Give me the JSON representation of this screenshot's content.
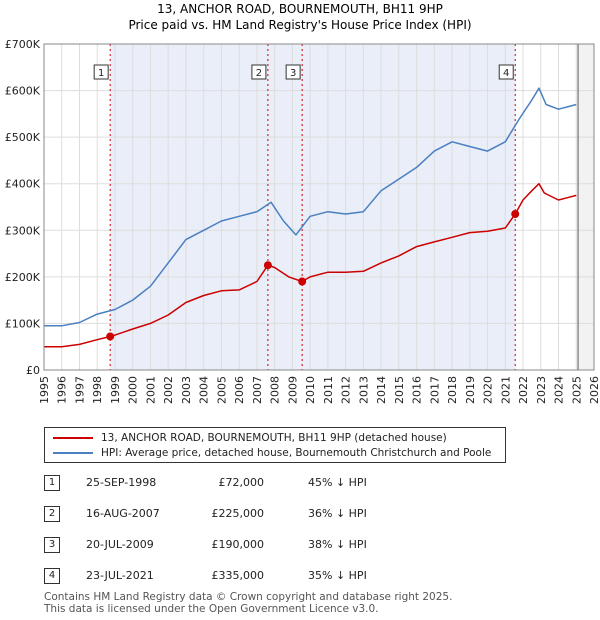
{
  "chart_data": {
    "type": "line",
    "title": "13, ANCHOR ROAD, BOURNEMOUTH, BH11 9HP",
    "subtitle": "Price paid vs. HM Land Registry's House Price Index (HPI)",
    "xlim": [
      1995,
      2026
    ],
    "ylim": [
      0,
      700000
    ],
    "y_ticks": [
      0,
      100000,
      200000,
      300000,
      400000,
      500000,
      600000,
      700000
    ],
    "y_tick_labels": [
      "£0",
      "£100K",
      "£200K",
      "£300K",
      "£400K",
      "£500K",
      "£600K",
      "£700K"
    ],
    "x_ticks": [
      1995,
      1996,
      1997,
      1998,
      1999,
      2000,
      2001,
      2002,
      2003,
      2004,
      2005,
      2006,
      2007,
      2008,
      2009,
      2010,
      2011,
      2012,
      2013,
      2014,
      2015,
      2016,
      2017,
      2018,
      2019,
      2020,
      2021,
      2022,
      2023,
      2024,
      2025,
      2026
    ],
    "shaded_range": [
      1998.73,
      2021.56
    ],
    "data_end_year": 2025.1,
    "series": [
      {
        "name": "13, ANCHOR ROAD, BOURNEMOUTH, BH11 9HP (detached house)",
        "color": "#cc0000",
        "x": [
          1995,
          1996,
          1997,
          1998,
          1998.73,
          1999,
          2000,
          2001,
          2002,
          2003,
          2004,
          2005,
          2006,
          2007,
          2007.62,
          2008,
          2008.8,
          2009.55,
          2010,
          2011,
          2012,
          2013,
          2014,
          2015,
          2016,
          2017,
          2018,
          2019,
          2020,
          2021,
          2021.56,
          2022,
          2022.5,
          2022.9,
          2023.2,
          2024,
          2024.5,
          2025
        ],
        "values": [
          50000,
          50000,
          55000,
          65000,
          72000,
          75000,
          88000,
          100000,
          118000,
          145000,
          160000,
          170000,
          172000,
          190000,
          225000,
          220000,
          200000,
          190000,
          200000,
          210000,
          210000,
          212000,
          230000,
          245000,
          265000,
          275000,
          285000,
          295000,
          298000,
          305000,
          335000,
          365000,
          385000,
          400000,
          380000,
          365000,
          370000,
          375000
        ]
      },
      {
        "name": "HPI: Average price, detached house, Bournemouth Christchurch and Poole",
        "color": "#4a7fc1",
        "x": [
          1995,
          1996,
          1997,
          1998,
          1999,
          2000,
          2001,
          2002,
          2003,
          2004,
          2005,
          2006,
          2007,
          2007.8,
          2008.5,
          2009.2,
          2010,
          2011,
          2012,
          2013,
          2014,
          2015,
          2016,
          2017,
          2018,
          2019,
          2020,
          2021,
          2021.8,
          2022.5,
          2022.9,
          2023.3,
          2024,
          2024.5,
          2025
        ],
        "values": [
          95000,
          95000,
          102000,
          120000,
          130000,
          150000,
          180000,
          230000,
          280000,
          300000,
          320000,
          330000,
          340000,
          360000,
          320000,
          290000,
          330000,
          340000,
          335000,
          340000,
          385000,
          410000,
          435000,
          470000,
          490000,
          480000,
          470000,
          490000,
          540000,
          580000,
          605000,
          570000,
          560000,
          565000,
          570000
        ]
      }
    ],
    "sales_markers": [
      {
        "label": "1",
        "x": 1998.73,
        "value": 72000
      },
      {
        "label": "2",
        "x": 2007.62,
        "value": 225000
      },
      {
        "label": "3",
        "x": 2009.55,
        "value": 190000
      },
      {
        "label": "4",
        "x": 2021.56,
        "value": 335000
      }
    ]
  },
  "legend": {
    "property_label": "13, ANCHOR ROAD, BOURNEMOUTH, BH11 9HP (detached house)",
    "hpi_label": "HPI: Average price, detached house, Bournemouth Christchurch and Poole"
  },
  "sales": [
    {
      "num": "1",
      "date": "25-SEP-1998",
      "price": "£72,000",
      "hpi": "45% ↓ HPI"
    },
    {
      "num": "2",
      "date": "16-AUG-2007",
      "price": "£225,000",
      "hpi": "36% ↓ HPI"
    },
    {
      "num": "3",
      "date": "20-JUL-2009",
      "price": "£190,000",
      "hpi": "38% ↓ HPI"
    },
    {
      "num": "4",
      "date": "23-JUL-2021",
      "price": "£335,000",
      "hpi": "35% ↓ HPI"
    }
  ],
  "footer": {
    "line1": "Contains HM Land Registry data © Crown copyright and database right 2025.",
    "line2": "This data is licensed under the Open Government Licence v3.0."
  }
}
